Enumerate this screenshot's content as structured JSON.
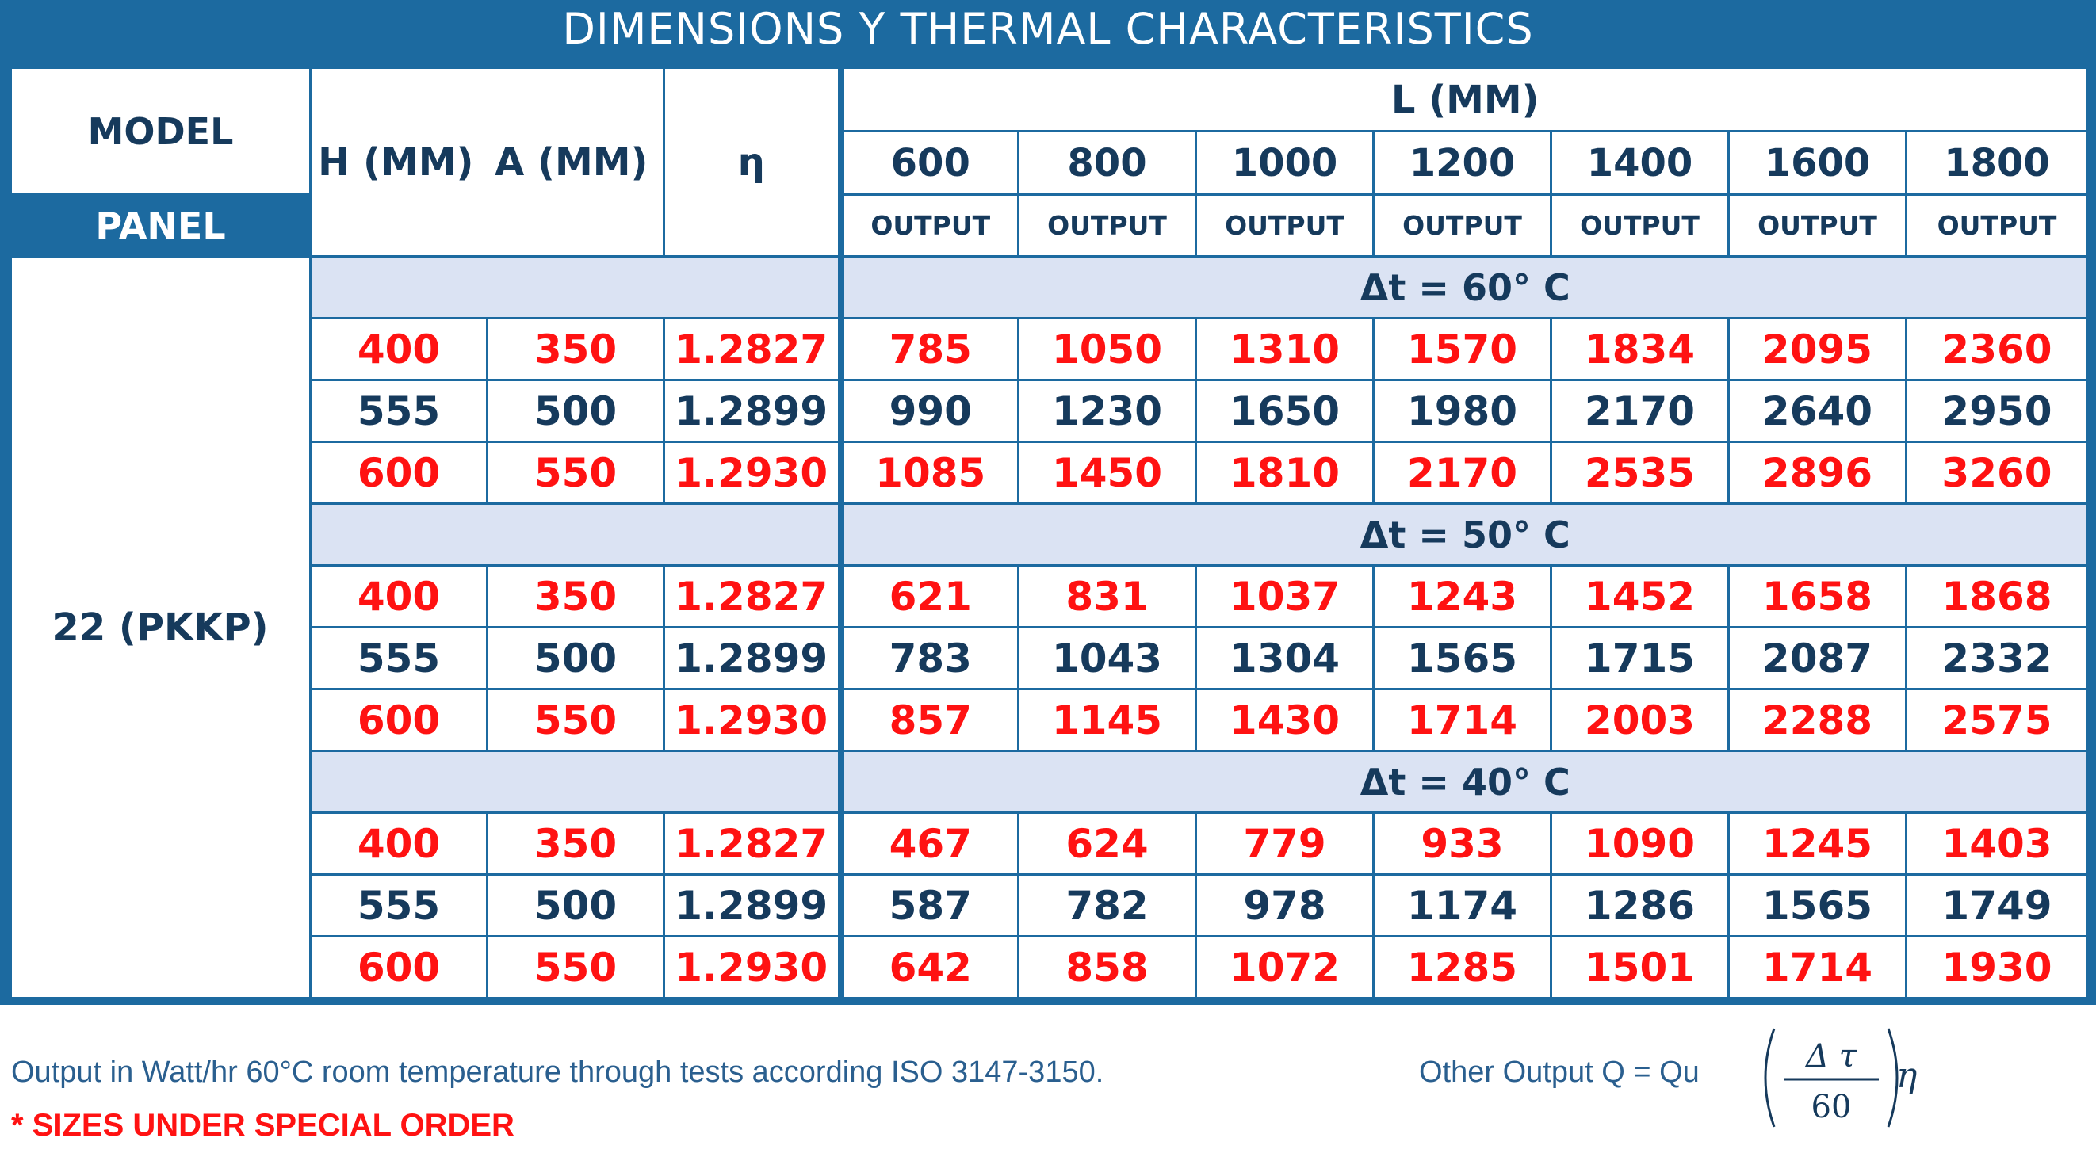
{
  "title": "DIMENSIONS Y THERMAL CHARACTERISTICS",
  "header": {
    "model": "MODEL",
    "panel": "PANEL",
    "h": "H (MM)",
    "a": "A (MM)",
    "eta": "η",
    "l": "L (MM)",
    "lengths": [
      "600",
      "800",
      "1000",
      "1200",
      "1400",
      "1600",
      "1800"
    ],
    "output": "OUTPUT"
  },
  "panel_name": "22 (PKKP)",
  "groups": [
    {
      "label": "Δt = 60° C",
      "rows": [
        {
          "h": "400",
          "a": "350",
          "eta": "1.2827",
          "values": [
            "785",
            "1050",
            "1310",
            "1570",
            "1834",
            "2095",
            "2360"
          ],
          "style": "red"
        },
        {
          "h": "555",
          "a": "500",
          "eta": "1.2899",
          "values": [
            "990",
            "1230",
            "1650",
            "1980",
            "2170",
            "2640",
            "2950"
          ],
          "style": "blue"
        },
        {
          "h": "600",
          "a": "550",
          "eta": "1.2930",
          "values": [
            "1085",
            "1450",
            "1810",
            "2170",
            "2535",
            "2896",
            "3260"
          ],
          "style": "red"
        }
      ]
    },
    {
      "label": "Δt = 50° C",
      "rows": [
        {
          "h": "400",
          "a": "350",
          "eta": "1.2827",
          "values": [
            "621",
            "831",
            "1037",
            "1243",
            "1452",
            "1658",
            "1868"
          ],
          "style": "red"
        },
        {
          "h": "555",
          "a": "500",
          "eta": "1.2899",
          "values": [
            "783",
            "1043",
            "1304",
            "1565",
            "1715",
            "2087",
            "2332"
          ],
          "style": "blue"
        },
        {
          "h": "600",
          "a": "550",
          "eta": "1.2930",
          "values": [
            "857",
            "1145",
            "1430",
            "1714",
            "2003",
            "2288",
            "2575"
          ],
          "style": "red"
        }
      ]
    },
    {
      "label": "Δt = 40° C",
      "rows": [
        {
          "h": "400",
          "a": "350",
          "eta": "1.2827",
          "values": [
            "467",
            "624",
            "779",
            "933",
            "1090",
            "1245",
            "1403"
          ],
          "style": "red"
        },
        {
          "h": "555",
          "a": "500",
          "eta": "1.2899",
          "values": [
            "587",
            "782",
            "978",
            "1174",
            "1286",
            "1565",
            "1749"
          ],
          "style": "blue"
        },
        {
          "h": "600",
          "a": "550",
          "eta": "1.2930",
          "values": [
            "642",
            "858",
            "1072",
            "1285",
            "1501",
            "1714",
            "1930"
          ],
          "style": "red"
        }
      ]
    }
  ],
  "footer": {
    "note": "Output in Watt/hr 60°C room temperature through tests according ISO 3147-3150.",
    "special": "* SIZES UNDER SPECIAL ORDER",
    "formula_prefix": "Other Output Q = Qu",
    "formula_num": "Δ τ",
    "formula_den": "60",
    "formula_suffix": "η"
  },
  "colors": {
    "frame_blue": "#1c6aa0",
    "text_dark": "#163a5c",
    "highlight_red": "#ff1212",
    "band_light": "#dbe3f3"
  }
}
